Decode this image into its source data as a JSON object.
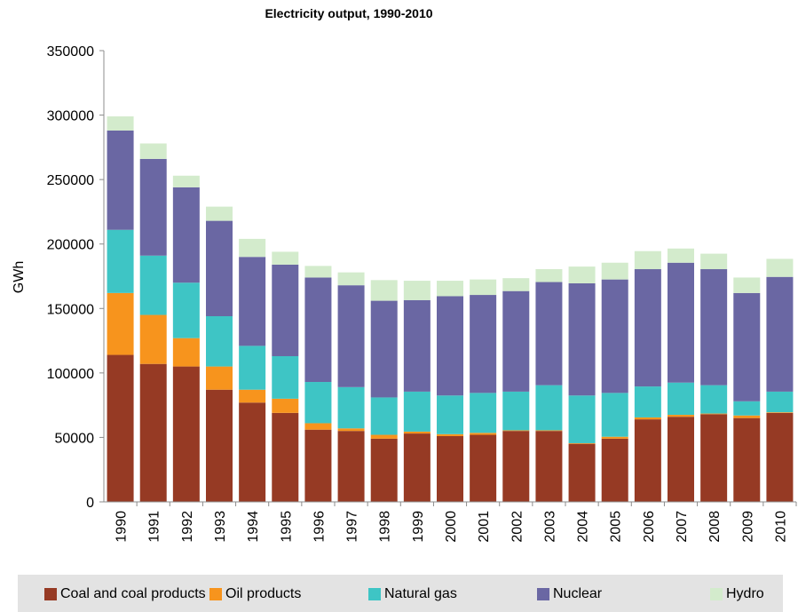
{
  "chart_data": {
    "type": "bar",
    "stacked": true,
    "title": "Electricity output, 1990-2010",
    "xlabel": "",
    "ylabel": "GWh",
    "ylim": [
      0,
      350000
    ],
    "yticks": [
      "0",
      "50000",
      "100000",
      "150000",
      "200000",
      "250000",
      "300000",
      "350000"
    ],
    "grid": false,
    "legend_position": "bottom",
    "categories": [
      "1990",
      "1991",
      "1992",
      "1993",
      "1994",
      "1995",
      "1996",
      "1997",
      "1998",
      "1999",
      "2000",
      "2001",
      "2002",
      "2003",
      "2004",
      "2005",
      "2006",
      "2007",
      "2008",
      "2009",
      "2010"
    ],
    "series": [
      {
        "name": "Coal and coal products",
        "color": "#963a24",
        "values": [
          114000,
          107000,
          105000,
          87000,
          77000,
          69000,
          56000,
          55000,
          49000,
          53000,
          51000,
          52000,
          55000,
          55000,
          45000,
          49000,
          64000,
          66000,
          68000,
          65000,
          69000
        ]
      },
      {
        "name": "Oil products",
        "color": "#f7941d",
        "values": [
          48000,
          38000,
          22000,
          18000,
          10000,
          11000,
          5000,
          2000,
          3000,
          1500,
          1500,
          1500,
          500,
          500,
          500,
          1500,
          1500,
          1500,
          500,
          2000,
          500
        ]
      },
      {
        "name": "Natural gas",
        "color": "#3ec5c5",
        "values": [
          49000,
          46000,
          43000,
          39000,
          34000,
          33000,
          32000,
          32000,
          29000,
          31000,
          30000,
          31000,
          30000,
          35000,
          37000,
          34000,
          24000,
          25000,
          22000,
          11000,
          16000
        ]
      },
      {
        "name": "Nuclear",
        "color": "#6a67a3",
        "values": [
          77000,
          75000,
          74000,
          74000,
          69000,
          71000,
          81000,
          79000,
          75000,
          71000,
          77000,
          76000,
          78000,
          80000,
          87000,
          88000,
          91000,
          93000,
          90000,
          84000,
          89000
        ]
      },
      {
        "name": "Hydro",
        "color": "#d3ebcc",
        "values": [
          11000,
          12000,
          9000,
          11000,
          14000,
          10000,
          9000,
          10000,
          16000,
          15000,
          12000,
          12000,
          10000,
          10000,
          13000,
          13000,
          14000,
          11000,
          12000,
          12000,
          14000
        ]
      }
    ]
  }
}
